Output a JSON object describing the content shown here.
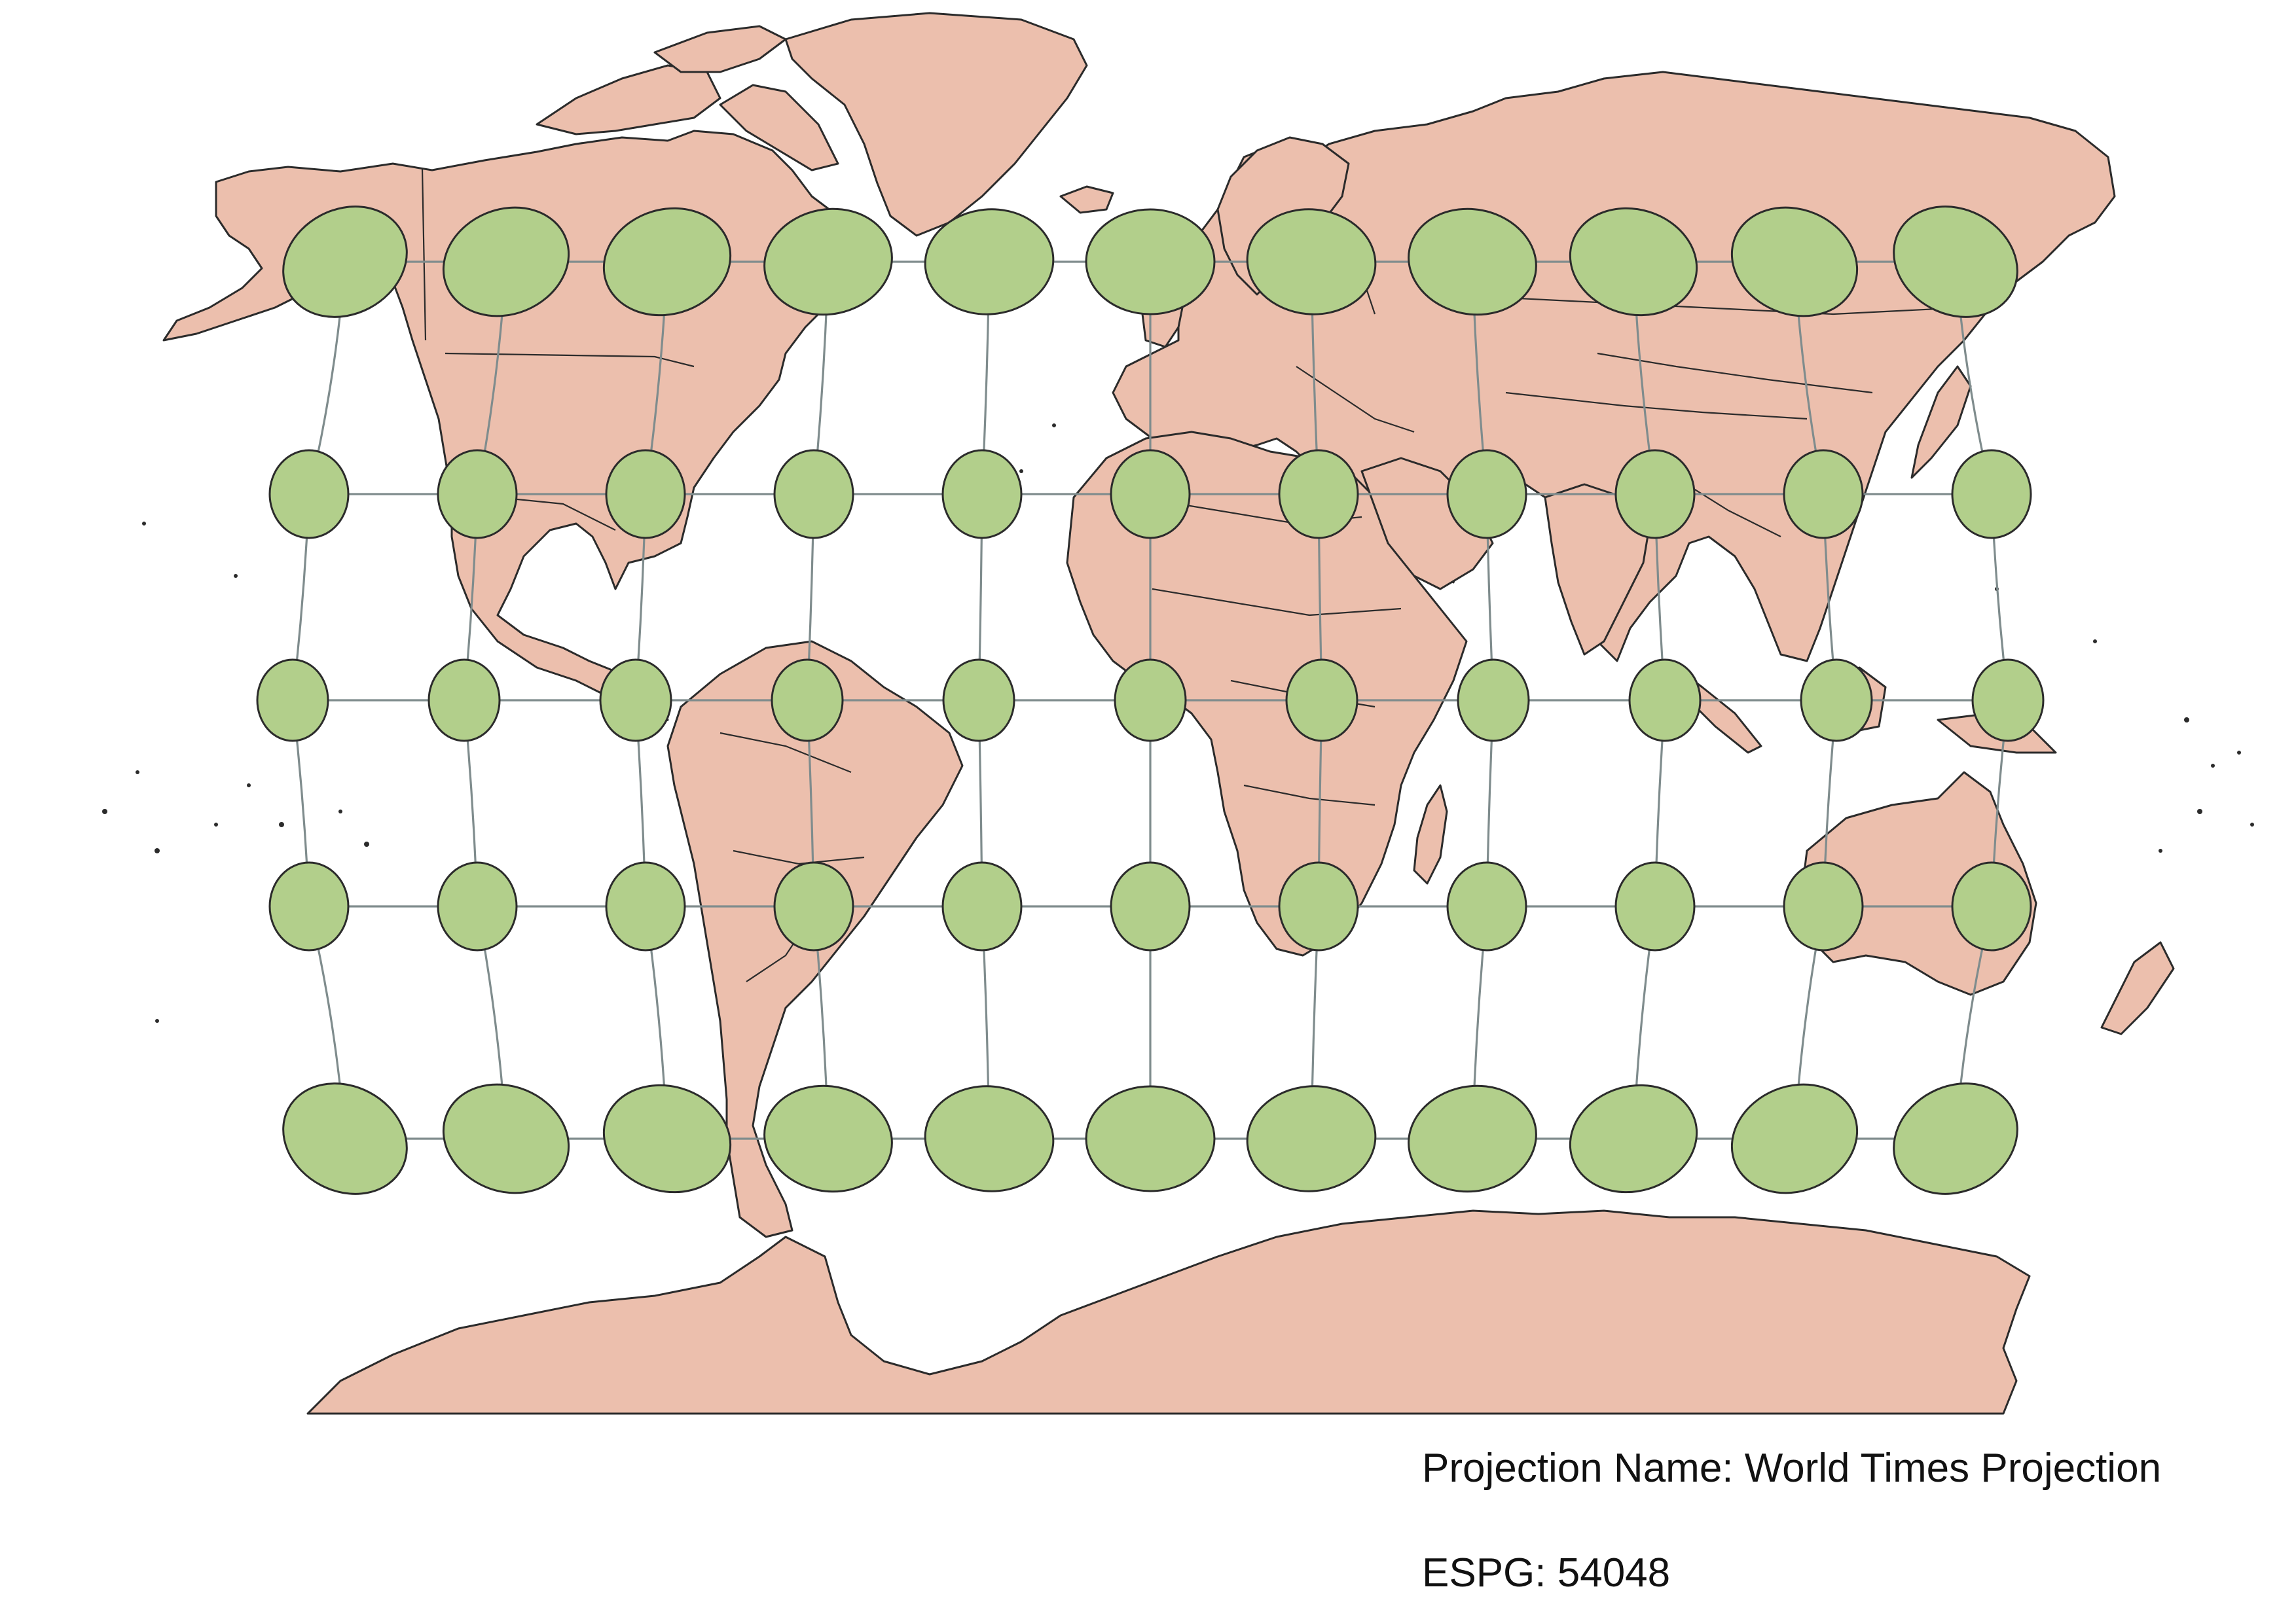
{
  "figure": {
    "caption_projection": "Projection Name: World Times Projection",
    "caption_epsg": "ESPG: 54048"
  },
  "colors": {
    "land": "#ecbfad",
    "indicatrix": "#b2cf8b",
    "graticule": "#7f8c8d",
    "coastline": "#2b2b2b",
    "background": "#ffffff"
  },
  "graticule": {
    "longitudes_deg": [
      -150,
      -120,
      -90,
      -60,
      -30,
      0,
      30,
      60,
      90,
      120,
      150
    ],
    "latitudes_deg": [
      60,
      30,
      0,
      -30,
      -60
    ]
  },
  "layers": [
    "land-masses",
    "country-borders",
    "graticule",
    "tissot-indicatrices"
  ]
}
